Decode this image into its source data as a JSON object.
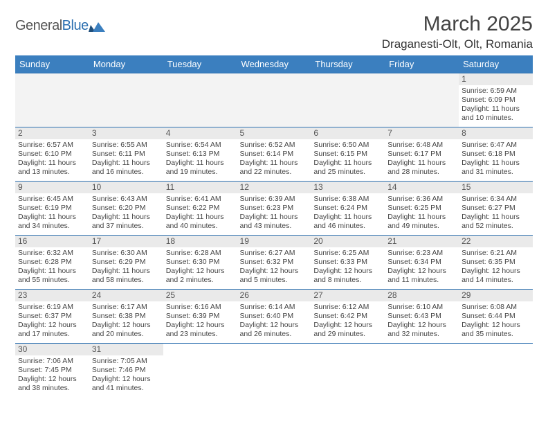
{
  "brand": {
    "name_a": "General",
    "name_b": "Blue"
  },
  "title": "March 2025",
  "location": "Draganesti-Olt, Olt, Romania",
  "colors": {
    "header_bg": "#3b7fbf",
    "rule": "#2b6fb0",
    "daynum_bg": "#eaeaea",
    "empty_bg": "#f3f3f3"
  },
  "days_of_week": [
    "Sunday",
    "Monday",
    "Tuesday",
    "Wednesday",
    "Thursday",
    "Friday",
    "Saturday"
  ],
  "weeks": [
    [
      null,
      null,
      null,
      null,
      null,
      null,
      {
        "n": "1",
        "sr": "Sunrise: 6:59 AM",
        "ss": "Sunset: 6:09 PM",
        "dl": "Daylight: 11 hours and 10 minutes."
      }
    ],
    [
      {
        "n": "2",
        "sr": "Sunrise: 6:57 AM",
        "ss": "Sunset: 6:10 PM",
        "dl": "Daylight: 11 hours and 13 minutes."
      },
      {
        "n": "3",
        "sr": "Sunrise: 6:55 AM",
        "ss": "Sunset: 6:11 PM",
        "dl": "Daylight: 11 hours and 16 minutes."
      },
      {
        "n": "4",
        "sr": "Sunrise: 6:54 AM",
        "ss": "Sunset: 6:13 PM",
        "dl": "Daylight: 11 hours and 19 minutes."
      },
      {
        "n": "5",
        "sr": "Sunrise: 6:52 AM",
        "ss": "Sunset: 6:14 PM",
        "dl": "Daylight: 11 hours and 22 minutes."
      },
      {
        "n": "6",
        "sr": "Sunrise: 6:50 AM",
        "ss": "Sunset: 6:15 PM",
        "dl": "Daylight: 11 hours and 25 minutes."
      },
      {
        "n": "7",
        "sr": "Sunrise: 6:48 AM",
        "ss": "Sunset: 6:17 PM",
        "dl": "Daylight: 11 hours and 28 minutes."
      },
      {
        "n": "8",
        "sr": "Sunrise: 6:47 AM",
        "ss": "Sunset: 6:18 PM",
        "dl": "Daylight: 11 hours and 31 minutes."
      }
    ],
    [
      {
        "n": "9",
        "sr": "Sunrise: 6:45 AM",
        "ss": "Sunset: 6:19 PM",
        "dl": "Daylight: 11 hours and 34 minutes."
      },
      {
        "n": "10",
        "sr": "Sunrise: 6:43 AM",
        "ss": "Sunset: 6:20 PM",
        "dl": "Daylight: 11 hours and 37 minutes."
      },
      {
        "n": "11",
        "sr": "Sunrise: 6:41 AM",
        "ss": "Sunset: 6:22 PM",
        "dl": "Daylight: 11 hours and 40 minutes."
      },
      {
        "n": "12",
        "sr": "Sunrise: 6:39 AM",
        "ss": "Sunset: 6:23 PM",
        "dl": "Daylight: 11 hours and 43 minutes."
      },
      {
        "n": "13",
        "sr": "Sunrise: 6:38 AM",
        "ss": "Sunset: 6:24 PM",
        "dl": "Daylight: 11 hours and 46 minutes."
      },
      {
        "n": "14",
        "sr": "Sunrise: 6:36 AM",
        "ss": "Sunset: 6:25 PM",
        "dl": "Daylight: 11 hours and 49 minutes."
      },
      {
        "n": "15",
        "sr": "Sunrise: 6:34 AM",
        "ss": "Sunset: 6:27 PM",
        "dl": "Daylight: 11 hours and 52 minutes."
      }
    ],
    [
      {
        "n": "16",
        "sr": "Sunrise: 6:32 AM",
        "ss": "Sunset: 6:28 PM",
        "dl": "Daylight: 11 hours and 55 minutes."
      },
      {
        "n": "17",
        "sr": "Sunrise: 6:30 AM",
        "ss": "Sunset: 6:29 PM",
        "dl": "Daylight: 11 hours and 58 minutes."
      },
      {
        "n": "18",
        "sr": "Sunrise: 6:28 AM",
        "ss": "Sunset: 6:30 PM",
        "dl": "Daylight: 12 hours and 2 minutes."
      },
      {
        "n": "19",
        "sr": "Sunrise: 6:27 AM",
        "ss": "Sunset: 6:32 PM",
        "dl": "Daylight: 12 hours and 5 minutes."
      },
      {
        "n": "20",
        "sr": "Sunrise: 6:25 AM",
        "ss": "Sunset: 6:33 PM",
        "dl": "Daylight: 12 hours and 8 minutes."
      },
      {
        "n": "21",
        "sr": "Sunrise: 6:23 AM",
        "ss": "Sunset: 6:34 PM",
        "dl": "Daylight: 12 hours and 11 minutes."
      },
      {
        "n": "22",
        "sr": "Sunrise: 6:21 AM",
        "ss": "Sunset: 6:35 PM",
        "dl": "Daylight: 12 hours and 14 minutes."
      }
    ],
    [
      {
        "n": "23",
        "sr": "Sunrise: 6:19 AM",
        "ss": "Sunset: 6:37 PM",
        "dl": "Daylight: 12 hours and 17 minutes."
      },
      {
        "n": "24",
        "sr": "Sunrise: 6:17 AM",
        "ss": "Sunset: 6:38 PM",
        "dl": "Daylight: 12 hours and 20 minutes."
      },
      {
        "n": "25",
        "sr": "Sunrise: 6:16 AM",
        "ss": "Sunset: 6:39 PM",
        "dl": "Daylight: 12 hours and 23 minutes."
      },
      {
        "n": "26",
        "sr": "Sunrise: 6:14 AM",
        "ss": "Sunset: 6:40 PM",
        "dl": "Daylight: 12 hours and 26 minutes."
      },
      {
        "n": "27",
        "sr": "Sunrise: 6:12 AM",
        "ss": "Sunset: 6:42 PM",
        "dl": "Daylight: 12 hours and 29 minutes."
      },
      {
        "n": "28",
        "sr": "Sunrise: 6:10 AM",
        "ss": "Sunset: 6:43 PM",
        "dl": "Daylight: 12 hours and 32 minutes."
      },
      {
        "n": "29",
        "sr": "Sunrise: 6:08 AM",
        "ss": "Sunset: 6:44 PM",
        "dl": "Daylight: 12 hours and 35 minutes."
      }
    ],
    [
      {
        "n": "30",
        "sr": "Sunrise: 7:06 AM",
        "ss": "Sunset: 7:45 PM",
        "dl": "Daylight: 12 hours and 38 minutes."
      },
      {
        "n": "31",
        "sr": "Sunrise: 7:05 AM",
        "ss": "Sunset: 7:46 PM",
        "dl": "Daylight: 12 hours and 41 minutes."
      },
      null,
      null,
      null,
      null,
      null
    ]
  ]
}
